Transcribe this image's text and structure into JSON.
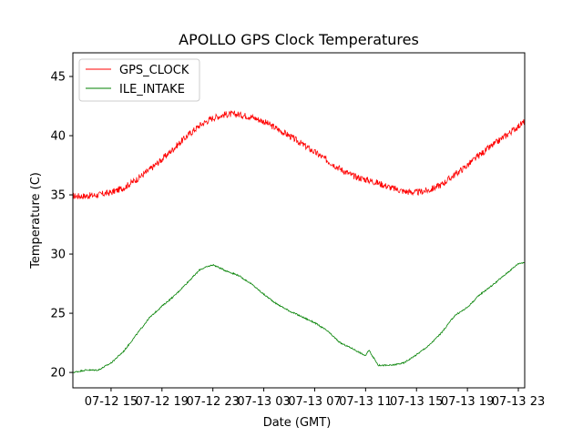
{
  "chart_data": {
    "type": "line",
    "title": "APOLLO GPS Clock Temperatures",
    "xlabel": "Date (GMT)",
    "ylabel": "Temperature (C)",
    "xlim": [
      "07-12 12:00",
      "07-13 23:30"
    ],
    "ylim": [
      18.7,
      47
    ],
    "x_tick_labels": [
      "07-12 15",
      "07-12 19",
      "07-12 23",
      "07-13 03",
      "07-13 07",
      "07-13 11",
      "07-13 15",
      "07-13 19",
      "07-13 23"
    ],
    "y_ticks": [
      20,
      25,
      30,
      35,
      40,
      45
    ],
    "legend_position": "top-left",
    "grid": false,
    "series": [
      {
        "name": "GPS_CLOCK",
        "color": "#ff0000",
        "x": [
          "07-12 12:00",
          "07-12 13:00",
          "07-12 14:00",
          "07-12 15:00",
          "07-12 16:00",
          "07-12 17:00",
          "07-12 18:00",
          "07-12 19:00",
          "07-12 20:00",
          "07-12 21:00",
          "07-12 22:00",
          "07-12 23:00",
          "07-13 00:00",
          "07-13 01:00",
          "07-13 02:00",
          "07-13 03:00",
          "07-13 04:00",
          "07-13 05:00",
          "07-13 06:00",
          "07-13 07:00",
          "07-13 08:00",
          "07-13 09:00",
          "07-13 10:00",
          "07-13 11:00",
          "07-13 12:00",
          "07-13 13:00",
          "07-13 14:00",
          "07-13 15:00",
          "07-13 16:00",
          "07-13 17:00",
          "07-13 18:00",
          "07-13 19:00",
          "07-13 20:00",
          "07-13 21:00",
          "07-13 22:00",
          "07-13 23:00",
          "07-13 23:30"
        ],
        "values": [
          34.9,
          34.9,
          35.0,
          35.2,
          35.6,
          36.3,
          37.1,
          38.0,
          39.0,
          40.0,
          40.9,
          41.5,
          41.8,
          41.8,
          41.6,
          41.2,
          40.6,
          40.0,
          39.3,
          38.6,
          37.9,
          37.2,
          36.6,
          36.3,
          36.0,
          35.6,
          35.3,
          35.2,
          35.4,
          35.9,
          36.7,
          37.5,
          38.4,
          39.2,
          40.0,
          40.8,
          41.2
        ]
      },
      {
        "name": "ILE_INTAKE",
        "color": "#008000",
        "x": [
          "07-12 12:00",
          "07-12 13:00",
          "07-12 14:00",
          "07-12 15:00",
          "07-12 16:00",
          "07-12 17:00",
          "07-12 18:00",
          "07-12 19:00",
          "07-12 20:00",
          "07-12 21:00",
          "07-12 22:00",
          "07-12 23:00",
          "07-13 00:00",
          "07-13 01:00",
          "07-13 02:00",
          "07-13 03:00",
          "07-13 04:00",
          "07-13 05:00",
          "07-13 06:00",
          "07-13 07:00",
          "07-13 08:00",
          "07-13 09:00",
          "07-13 10:00",
          "07-13 11:00",
          "07-13 11:15",
          "07-13 12:00",
          "07-13 13:00",
          "07-13 14:00",
          "07-13 15:00",
          "07-13 16:00",
          "07-13 17:00",
          "07-13 18:00",
          "07-13 19:00",
          "07-13 20:00",
          "07-13 21:00",
          "07-13 22:00",
          "07-13 23:00",
          "07-13 23:30"
        ],
        "values": [
          20.0,
          20.2,
          20.2,
          20.8,
          21.8,
          23.2,
          24.6,
          25.6,
          26.5,
          27.6,
          28.7,
          29.1,
          28.6,
          28.2,
          27.5,
          26.6,
          25.8,
          25.2,
          24.7,
          24.2,
          23.5,
          22.5,
          22.0,
          21.4,
          21.9,
          20.6,
          20.6,
          20.8,
          21.5,
          22.3,
          23.4,
          24.8,
          25.5,
          26.6,
          27.4,
          28.3,
          29.2,
          29.3
        ]
      }
    ]
  }
}
